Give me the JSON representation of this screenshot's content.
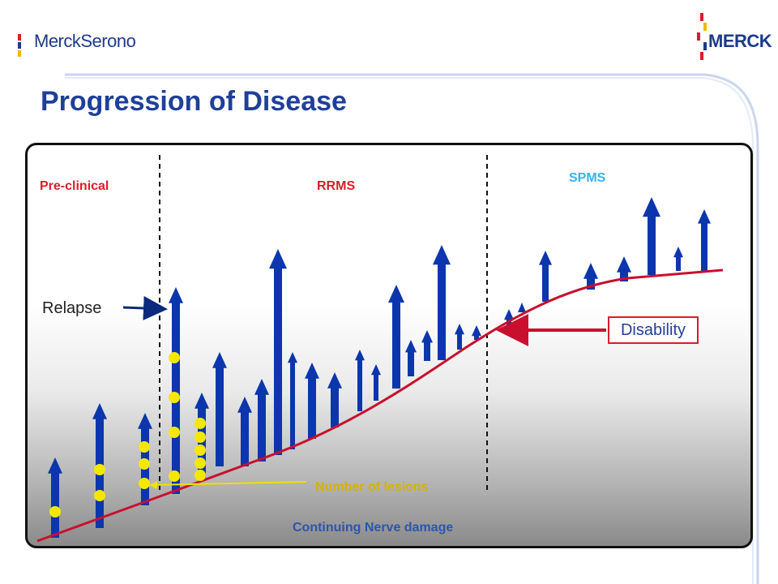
{
  "brand": {
    "left_logo": "MerckSerono",
    "right_logo": "MERCK"
  },
  "title": "Progression of Disease",
  "phases": {
    "preclinical": "Pre-clinical",
    "rrms": "RRMS",
    "spms": "SPMS"
  },
  "labels": {
    "relapse": "Relapse",
    "disability": "Disability",
    "lesions": "Number of lesions",
    "nerve_damage": "Continuing Nerve damage"
  },
  "colors": {
    "arrow": "#0b36ad",
    "curve": "#c8102e",
    "lesion": "#f5e800",
    "phase_red": "#d81e2a",
    "phase_blue": "#35b3e6",
    "title_blue": "#1f3f9a"
  },
  "icons": [
    "relapse-arrow-icon",
    "disability-arrow-icon",
    "lesion-dot-icon"
  ]
}
